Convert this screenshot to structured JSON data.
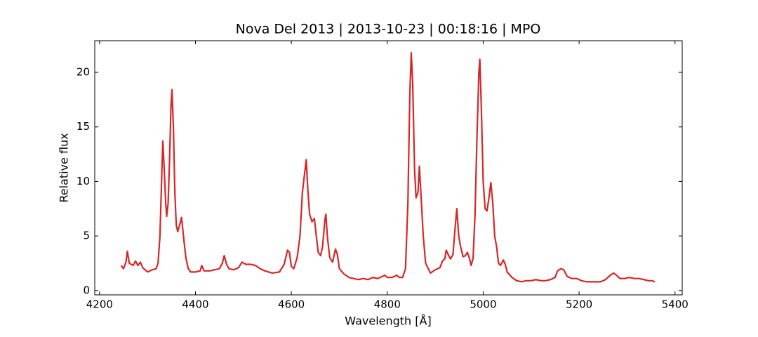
{
  "chart_data": {
    "type": "line",
    "title": "Nova Del 2013 | 2013-10-23 | 00:18:16 | MPO",
    "x_label": "Wavelength [Å]",
    "y_label": "Relative flux",
    "xlim": [
      4190,
      5415
    ],
    "ylim": [
      -0.4,
      22.9
    ],
    "xticks": [
      4200,
      4400,
      4600,
      4800,
      5000,
      5200,
      5400
    ],
    "yticks": [
      0,
      5,
      10,
      15,
      20
    ],
    "grid": false,
    "series": [
      {
        "name": "Nova Del 2013",
        "color": "#d62728",
        "x": [
          4245,
          4250,
          4255,
          4258,
          4262,
          4270,
          4275,
          4280,
          4285,
          4290,
          4300,
          4310,
          4318,
          4322,
          4326,
          4330,
          4332,
          4335,
          4338,
          4340,
          4343,
          4346,
          4349,
          4351,
          4354,
          4357,
          4360,
          4363,
          4367,
          4371,
          4375,
          4380,
          4385,
          4390,
          4400,
          4410,
          4413,
          4418,
          4430,
          4440,
          4450,
          4456,
          4460,
          4465,
          4470,
          4480,
          4490,
          4497,
          4505,
          4515,
          4525,
          4535,
          4545,
          4560,
          4575,
          4585,
          4592,
          4596,
          4600,
          4605,
          4612,
          4618,
          4623,
          4627,
          4631,
          4634,
          4638,
          4643,
          4648,
          4652,
          4656,
          4661,
          4665,
          4670,
          4672,
          4675,
          4680,
          4686,
          4692,
          4696,
          4700,
          4710,
          4720,
          4730,
          4740,
          4750,
          4760,
          4770,
          4780,
          4790,
          4795,
          4800,
          4810,
          4820,
          4825,
          4832,
          4838,
          4843,
          4847,
          4850,
          4853,
          4857,
          4860,
          4864,
          4867,
          4870,
          4875,
          4880,
          4890,
          4900,
          4910,
          4915,
          4920,
          4923,
          4927,
          4932,
          4937,
          4941,
          4945,
          4949,
          4953,
          4958,
          4963,
          4967,
          4971,
          4975,
          4979,
          4983,
          4987,
          4991,
          4993,
          4996,
          5000,
          5004,
          5008,
          5012,
          5016,
          5020,
          5024,
          5028,
          5032,
          5036,
          5042,
          5046,
          5050,
          5060,
          5070,
          5080,
          5090,
          5100,
          5110,
          5120,
          5130,
          5140,
          5150,
          5155,
          5162,
          5168,
          5175,
          5185,
          5195,
          5205,
          5215,
          5225,
          5235,
          5245,
          5255,
          5265,
          5272,
          5278,
          5285,
          5295,
          5305,
          5315,
          5325,
          5335,
          5345,
          5352,
          5358
        ],
        "values": [
          2.3,
          2.0,
          2.6,
          3.6,
          2.5,
          2.3,
          2.7,
          2.3,
          2.6,
          2.1,
          1.7,
          1.9,
          2.0,
          2.5,
          5,
          11,
          13.7,
          11,
          8,
          6.8,
          8,
          12,
          17,
          18.4,
          15,
          9,
          6,
          5.4,
          6,
          6.7,
          5,
          3,
          2,
          1.7,
          1.7,
          1.8,
          2.3,
          1.8,
          1.8,
          1.9,
          2.0,
          2.5,
          3.2,
          2.4,
          2.0,
          1.9,
          2.1,
          2.6,
          2.4,
          2.4,
          2.3,
          2.0,
          1.8,
          1.6,
          1.7,
          2.4,
          3.7,
          3.5,
          2.2,
          2.0,
          3,
          5,
          9,
          10.5,
          12,
          9.5,
          7,
          6.3,
          6.6,
          5,
          3.5,
          3.2,
          4,
          6.5,
          7,
          5,
          3,
          2.6,
          3.8,
          3.3,
          2,
          1.5,
          1.2,
          1.1,
          1.0,
          1.1,
          1.0,
          1.2,
          1.1,
          1.3,
          1.4,
          1.2,
          1.2,
          1.4,
          1.2,
          1.2,
          2,
          8,
          18,
          21.8,
          19,
          11,
          8.5,
          9,
          11.4,
          9,
          5,
          2.5,
          1.6,
          1.9,
          2.1,
          2.7,
          2.9,
          3.7,
          3.3,
          2.9,
          3.3,
          5.5,
          7.5,
          5,
          4,
          3.1,
          3.2,
          3.5,
          3.0,
          2.3,
          3,
          7,
          14,
          20,
          21.2,
          17,
          10,
          7.5,
          7.3,
          8.5,
          9.9,
          8,
          5,
          4,
          2.5,
          2.3,
          2.8,
          2.4,
          1.7,
          1.2,
          0.9,
          0.8,
          0.9,
          0.9,
          1.0,
          0.9,
          0.9,
          1.0,
          1.2,
          1.8,
          2.0,
          1.9,
          1.3,
          1.1,
          1.1,
          0.9,
          0.8,
          0.8,
          0.8,
          0.8,
          1.0,
          1.4,
          1.6,
          1.4,
          1.1,
          1.1,
          1.2,
          1.1,
          1.1,
          1.0,
          0.9,
          0.9,
          0.8
        ]
      }
    ]
  }
}
